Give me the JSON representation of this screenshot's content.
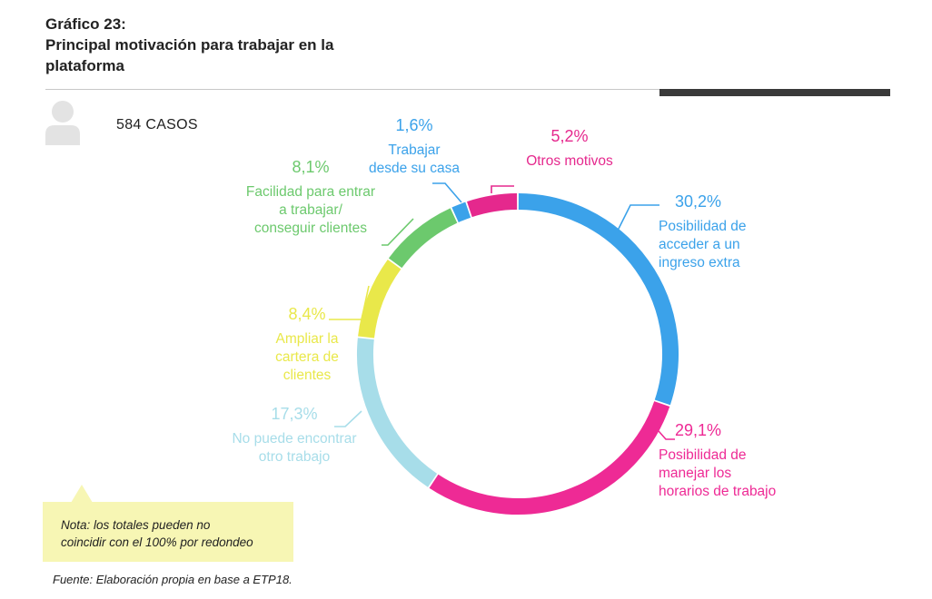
{
  "header": {
    "title_lines": [
      "Gráfico 23:",
      "Principal motivación para trabajar en la",
      "plataforma"
    ]
  },
  "cases_label": "584 CASOS",
  "icon": "person-icon",
  "note_lines": [
    "Nota: los totales pueden no",
    "coincidir con el 100% por redondeo"
  ],
  "source": "Fuente: Elaboración propia en base a ETP18.",
  "chart_data": {
    "type": "pie",
    "variant": "donut",
    "title": "Principal motivación para trabajar en la plataforma",
    "start": "top, clockwise",
    "legend": "none (labels beside slices)",
    "slices": [
      {
        "value": 30.2,
        "pct_label": "30,2%",
        "label_lines": [
          "Posibilidad de",
          "acceder a un",
          "ingreso extra"
        ],
        "color": "#3ba2ea"
      },
      {
        "value": 29.1,
        "pct_label": "29,1%",
        "label_lines": [
          "Posibilidad de",
          "manejar los",
          "horarios de trabajo"
        ],
        "color": "#ee2a95"
      },
      {
        "value": 17.3,
        "pct_label": "17,3%",
        "label_lines": [
          "No puede encontrar",
          "otro trabajo"
        ],
        "color": "#a7dde9"
      },
      {
        "value": 8.4,
        "pct_label": "8,4%",
        "label_lines": [
          "Ampliar la",
          "cartera de",
          "clientes"
        ],
        "color": "#e9e84a"
      },
      {
        "value": 8.1,
        "pct_label": "8,1%",
        "label_lines": [
          "Facilidad para entrar",
          "a trabajar/",
          "conseguir clientes"
        ],
        "color": "#6cc96d"
      },
      {
        "value": 1.6,
        "pct_label": "1,6%",
        "label_lines": [
          "Trabajar",
          "desde su casa"
        ],
        "color": "#3ba2ea"
      },
      {
        "value": 5.2,
        "pct_label": "5,2%",
        "label_lines": [
          "Otros motivos"
        ],
        "color": "#e5288d"
      }
    ]
  }
}
